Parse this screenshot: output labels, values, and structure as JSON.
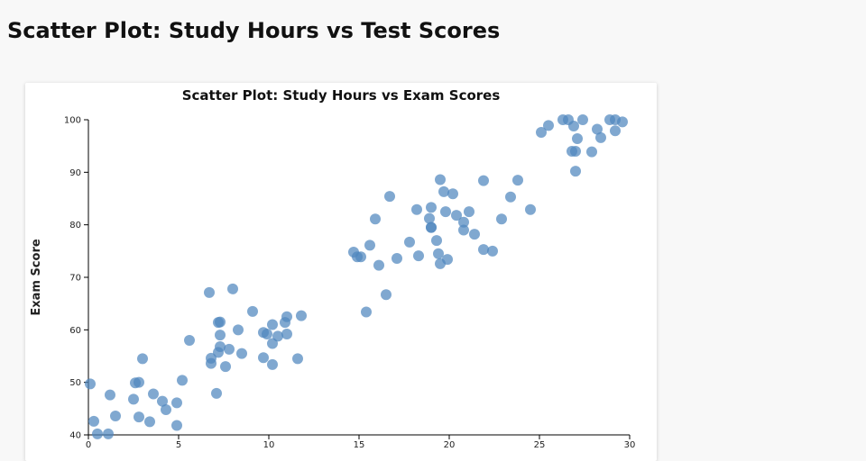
{
  "page": {
    "title": "Scatter Plot: Study Hours vs Test Scores"
  },
  "chart_data": {
    "type": "scatter",
    "title": "Scatter Plot: Study Hours vs Exam Scores",
    "xlabel": "",
    "ylabel": "Exam Score",
    "xlim": [
      0,
      30
    ],
    "ylim": [
      40,
      100
    ],
    "xticks": [
      0,
      5,
      10,
      15,
      20,
      25,
      30
    ],
    "yticks": [
      40,
      50,
      60,
      70,
      80,
      90,
      100
    ],
    "grid": false,
    "point_color": "#4f86be",
    "points": [
      [
        0.1,
        49.7
      ],
      [
        0.3,
        42.6
      ],
      [
        0.5,
        40.2
      ],
      [
        1.1,
        40.2
      ],
      [
        1.2,
        47.6
      ],
      [
        1.5,
        43.6
      ],
      [
        2.5,
        46.8
      ],
      [
        2.6,
        49.9
      ],
      [
        2.8,
        50.0
      ],
      [
        2.8,
        43.4
      ],
      [
        3.0,
        54.5
      ],
      [
        3.4,
        42.5
      ],
      [
        3.6,
        47.8
      ],
      [
        4.1,
        46.4
      ],
      [
        4.3,
        44.8
      ],
      [
        4.9,
        41.8
      ],
      [
        4.9,
        46.1
      ],
      [
        5.2,
        50.4
      ],
      [
        5.6,
        58.0
      ],
      [
        6.7,
        67.1
      ],
      [
        6.8,
        53.6
      ],
      [
        6.8,
        54.6
      ],
      [
        7.1,
        47.9
      ],
      [
        7.2,
        61.4
      ],
      [
        7.2,
        55.7
      ],
      [
        7.3,
        61.5
      ],
      [
        7.3,
        59.0
      ],
      [
        7.3,
        56.8
      ],
      [
        7.6,
        53.0
      ],
      [
        7.8,
        56.3
      ],
      [
        8.0,
        67.8
      ],
      [
        8.3,
        60.0
      ],
      [
        8.5,
        55.5
      ],
      [
        9.1,
        63.5
      ],
      [
        9.7,
        59.5
      ],
      [
        9.7,
        54.7
      ],
      [
        9.9,
        59.2
      ],
      [
        10.2,
        53.4
      ],
      [
        10.2,
        57.4
      ],
      [
        10.2,
        61.0
      ],
      [
        10.5,
        58.8
      ],
      [
        10.9,
        61.4
      ],
      [
        11.0,
        62.5
      ],
      [
        11.0,
        59.2
      ],
      [
        11.6,
        54.5
      ],
      [
        11.8,
        62.7
      ],
      [
        14.7,
        74.8
      ],
      [
        14.9,
        73.9
      ],
      [
        15.1,
        73.9
      ],
      [
        15.4,
        63.4
      ],
      [
        15.6,
        76.1
      ],
      [
        15.9,
        81.1
      ],
      [
        16.1,
        72.3
      ],
      [
        16.5,
        66.7
      ],
      [
        16.7,
        85.4
      ],
      [
        17.1,
        73.6
      ],
      [
        17.8,
        76.7
      ],
      [
        18.2,
        82.9
      ],
      [
        18.3,
        74.1
      ],
      [
        18.9,
        81.2
      ],
      [
        19.0,
        83.3
      ],
      [
        19.0,
        79.5
      ],
      [
        19.0,
        79.5
      ],
      [
        19.3,
        77.0
      ],
      [
        19.4,
        74.5
      ],
      [
        19.5,
        72.6
      ],
      [
        19.5,
        88.6
      ],
      [
        19.7,
        86.3
      ],
      [
        19.8,
        82.5
      ],
      [
        19.9,
        73.4
      ],
      [
        20.2,
        85.9
      ],
      [
        20.4,
        81.8
      ],
      [
        20.8,
        79.0
      ],
      [
        20.8,
        80.5
      ],
      [
        21.1,
        82.5
      ],
      [
        21.4,
        78.2
      ],
      [
        21.9,
        75.3
      ],
      [
        21.9,
        88.4
      ],
      [
        22.4,
        75.0
      ],
      [
        22.9,
        81.1
      ],
      [
        23.4,
        85.3
      ],
      [
        23.8,
        88.5
      ],
      [
        24.5,
        82.9
      ],
      [
        25.1,
        97.6
      ],
      [
        25.5,
        98.9
      ],
      [
        26.3,
        100.0
      ],
      [
        26.6,
        100.0
      ],
      [
        26.8,
        94.0
      ],
      [
        26.9,
        98.8
      ],
      [
        27.0,
        94.0
      ],
      [
        27.0,
        90.2
      ],
      [
        27.1,
        96.4
      ],
      [
        27.4,
        100.0
      ],
      [
        27.9,
        93.9
      ],
      [
        28.2,
        98.2
      ],
      [
        28.4,
        96.6
      ],
      [
        28.9,
        100.0
      ],
      [
        29.2,
        97.9
      ],
      [
        29.2,
        100.0
      ],
      [
        29.6,
        99.6
      ]
    ]
  }
}
